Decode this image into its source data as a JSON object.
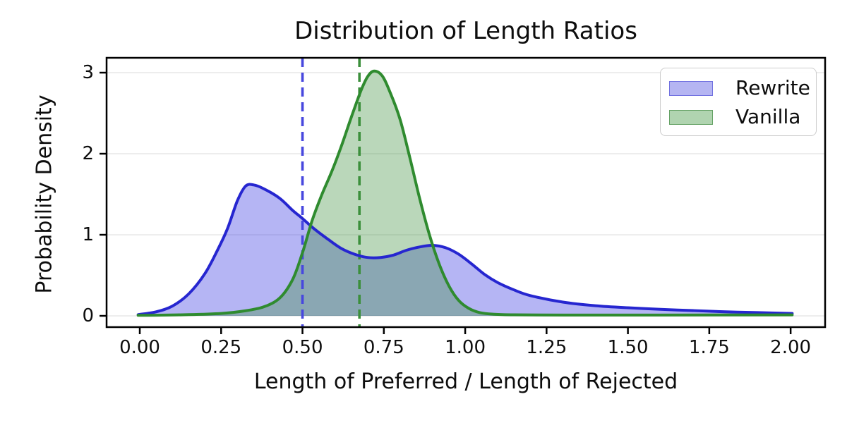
{
  "figure": {
    "title": "Distribution of Length Ratios"
  },
  "chart_data": {
    "type": "area",
    "subtype": "kde-density",
    "title": "Distribution of Length Ratios",
    "xlabel": "Length of Preferred / Length of Rejected",
    "ylabel": "Probability Density",
    "xlim": [
      -0.102,
      2.106
    ],
    "ylim": [
      -0.139,
      3.183
    ],
    "x_ticks": [
      0,
      0.25,
      0.5,
      0.75,
      1.0,
      1.25,
      1.5,
      1.75,
      2.0
    ],
    "x_tick_labels": [
      "0.00",
      "0.25",
      "0.50",
      "0.75",
      "1.00",
      "1.25",
      "1.50",
      "1.75",
      "2.00"
    ],
    "y_ticks": [
      0,
      1,
      2,
      3
    ],
    "y_tick_labels": [
      "0",
      "1",
      "2",
      "3"
    ],
    "grid": {
      "horizontal": true,
      "vertical": false,
      "color": "#e8e8e8"
    },
    "spine_color": "#000000",
    "legend": {
      "position": "upper right",
      "entries": [
        {
          "label": "Rewrite",
          "swatch_fill": "#b5b5f2",
          "swatch_edge": "#7070e0"
        },
        {
          "label": "Vanilla",
          "swatch_fill": "#b0d4b0",
          "swatch_edge": "#64a164"
        }
      ]
    },
    "series": [
      {
        "name": "Rewrite",
        "line_color": "#2626d0",
        "fill_color": "rgba(60,60,225,0.38)",
        "vline": {
          "x": 0.5,
          "color": "#4747de",
          "style": "dashed"
        },
        "peak": {
          "x": 0.33,
          "y": 1.62
        },
        "points": [
          [
            -0.005,
            0.015
          ],
          [
            0.05,
            0.05
          ],
          [
            0.1,
            0.12
          ],
          [
            0.15,
            0.27
          ],
          [
            0.2,
            0.52
          ],
          [
            0.24,
            0.82
          ],
          [
            0.27,
            1.08
          ],
          [
            0.3,
            1.42
          ],
          [
            0.325,
            1.6
          ],
          [
            0.35,
            1.615
          ],
          [
            0.38,
            1.57
          ],
          [
            0.43,
            1.45
          ],
          [
            0.47,
            1.3
          ],
          [
            0.5,
            1.2
          ],
          [
            0.54,
            1.06
          ],
          [
            0.58,
            0.94
          ],
          [
            0.62,
            0.83
          ],
          [
            0.66,
            0.76
          ],
          [
            0.7,
            0.72
          ],
          [
            0.74,
            0.72
          ],
          [
            0.78,
            0.75
          ],
          [
            0.82,
            0.81
          ],
          [
            0.86,
            0.85
          ],
          [
            0.9,
            0.87
          ],
          [
            0.94,
            0.84
          ],
          [
            0.98,
            0.76
          ],
          [
            1.02,
            0.64
          ],
          [
            1.06,
            0.51
          ],
          [
            1.1,
            0.41
          ],
          [
            1.15,
            0.32
          ],
          [
            1.2,
            0.25
          ],
          [
            1.3,
            0.17
          ],
          [
            1.4,
            0.125
          ],
          [
            1.5,
            0.1
          ],
          [
            1.6,
            0.08
          ],
          [
            1.7,
            0.065
          ],
          [
            1.8,
            0.05
          ],
          [
            1.9,
            0.04
          ],
          [
            2.005,
            0.03
          ]
        ]
      },
      {
        "name": "Vanilla",
        "line_color": "#2f8b2f",
        "fill_color": "rgba(58,140,58,0.35)",
        "vline": {
          "x": 0.675,
          "color": "#3b8f3b",
          "style": "dashed"
        },
        "peak": {
          "x": 0.72,
          "y": 3.02
        },
        "points": [
          [
            -0.005,
            0.006
          ],
          [
            0.05,
            0.008
          ],
          [
            0.15,
            0.015
          ],
          [
            0.25,
            0.03
          ],
          [
            0.32,
            0.06
          ],
          [
            0.38,
            0.11
          ],
          [
            0.43,
            0.22
          ],
          [
            0.47,
            0.45
          ],
          [
            0.5,
            0.78
          ],
          [
            0.53,
            1.18
          ],
          [
            0.56,
            1.5
          ],
          [
            0.59,
            1.78
          ],
          [
            0.62,
            2.1
          ],
          [
            0.65,
            2.45
          ],
          [
            0.68,
            2.78
          ],
          [
            0.7,
            2.95
          ],
          [
            0.72,
            3.02
          ],
          [
            0.745,
            2.96
          ],
          [
            0.77,
            2.75
          ],
          [
            0.8,
            2.42
          ],
          [
            0.83,
            1.95
          ],
          [
            0.86,
            1.45
          ],
          [
            0.89,
            1.0
          ],
          [
            0.92,
            0.64
          ],
          [
            0.95,
            0.37
          ],
          [
            0.98,
            0.19
          ],
          [
            1.01,
            0.095
          ],
          [
            1.045,
            0.04
          ],
          [
            1.09,
            0.02
          ],
          [
            1.15,
            0.013
          ],
          [
            1.3,
            0.01
          ],
          [
            1.6,
            0.01
          ],
          [
            2.005,
            0.012
          ]
        ]
      }
    ]
  }
}
